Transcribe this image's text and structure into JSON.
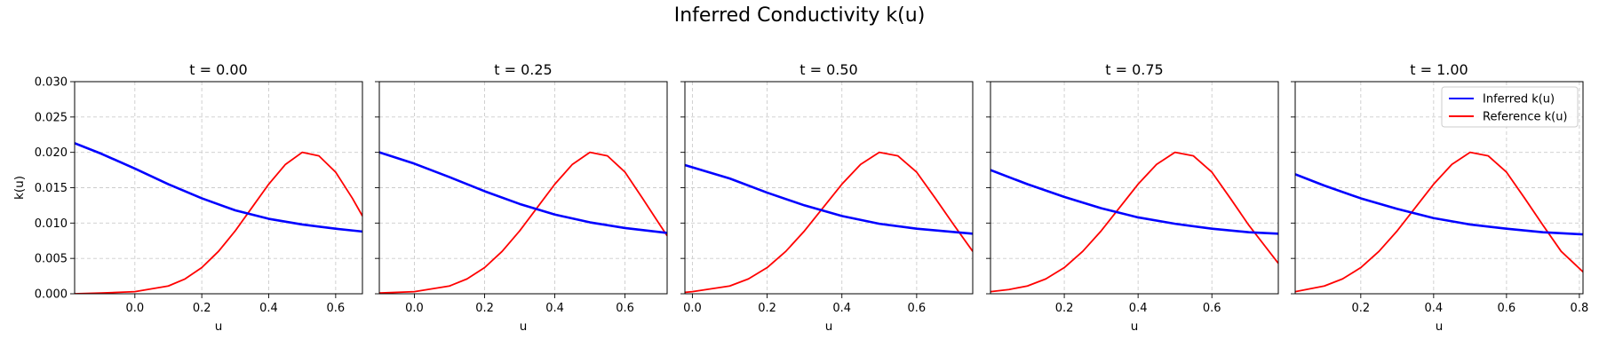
{
  "chart_data": {
    "type": "line",
    "title": "Inferred Conductivity k(u)",
    "ylabel": "k(u)",
    "xlabel": "u",
    "ylim": [
      0,
      0.03
    ],
    "yticks": [
      "0.000",
      "0.005",
      "0.010",
      "0.015",
      "0.020",
      "0.025",
      "0.030"
    ],
    "grid": true,
    "legend_placement": "upper-right",
    "series_names": [
      "Inferred k(u)",
      "Reference k(u)"
    ],
    "colors": {
      "inferred": "#0000ff",
      "reference": "#ff0000"
    },
    "panels": [
      {
        "title": "t = 0.00",
        "xlim": [
          -0.18,
          0.68
        ],
        "xticks": [
          "0.0",
          "0.2",
          "0.4",
          "0.6"
        ],
        "inferred": {
          "x": [
            -0.18,
            -0.1,
            0.0,
            0.1,
            0.2,
            0.3,
            0.4,
            0.5,
            0.6,
            0.68
          ],
          "y": [
            0.0213,
            0.0198,
            0.0177,
            0.0155,
            0.0135,
            0.0118,
            0.0106,
            0.0098,
            0.0092,
            0.0088
          ]
        },
        "reference": {
          "x": [
            -0.18,
            -0.1,
            0.0,
            0.1,
            0.15,
            0.2,
            0.25,
            0.3,
            0.35,
            0.4,
            0.45,
            0.5,
            0.55,
            0.6,
            0.65,
            0.68
          ],
          "y": [
            0.0,
            0.0001,
            0.0003,
            0.0011,
            0.0021,
            0.0037,
            0.006,
            0.0089,
            0.0122,
            0.0155,
            0.0183,
            0.02,
            0.0195,
            0.0172,
            0.0135,
            0.011
          ]
        }
      },
      {
        "title": "t = 0.25",
        "xlim": [
          -0.1,
          0.72
        ],
        "xticks": [
          "0.0",
          "0.2",
          "0.4",
          "0.6"
        ],
        "inferred": {
          "x": [
            -0.1,
            0.0,
            0.1,
            0.2,
            0.3,
            0.4,
            0.5,
            0.6,
            0.72
          ],
          "y": [
            0.02,
            0.0184,
            0.0165,
            0.0145,
            0.0127,
            0.0112,
            0.0101,
            0.0093,
            0.0086
          ]
        },
        "reference": {
          "x": [
            -0.1,
            0.0,
            0.1,
            0.15,
            0.2,
            0.25,
            0.3,
            0.35,
            0.4,
            0.45,
            0.5,
            0.55,
            0.6,
            0.65,
            0.7,
            0.72
          ],
          "y": [
            0.0001,
            0.0003,
            0.0011,
            0.0021,
            0.0037,
            0.006,
            0.0089,
            0.0122,
            0.0155,
            0.0183,
            0.02,
            0.0195,
            0.0172,
            0.0135,
            0.0097,
            0.0082
          ]
        }
      },
      {
        "title": "t = 0.50",
        "xlim": [
          -0.02,
          0.75
        ],
        "xticks": [
          "0.0",
          "0.2",
          "0.4",
          "0.6"
        ],
        "inferred": {
          "x": [
            -0.02,
            0.1,
            0.2,
            0.3,
            0.4,
            0.5,
            0.6,
            0.75
          ],
          "y": [
            0.0182,
            0.0163,
            0.0143,
            0.0125,
            0.011,
            0.0099,
            0.0092,
            0.0085
          ]
        },
        "reference": {
          "x": [
            -0.02,
            0.0,
            0.1,
            0.15,
            0.2,
            0.25,
            0.3,
            0.35,
            0.4,
            0.45,
            0.5,
            0.55,
            0.6,
            0.65,
            0.7,
            0.75
          ],
          "y": [
            0.0002,
            0.0003,
            0.0011,
            0.0021,
            0.0037,
            0.006,
            0.0089,
            0.0122,
            0.0155,
            0.0183,
            0.02,
            0.0195,
            0.0172,
            0.0135,
            0.0097,
            0.006
          ]
        }
      },
      {
        "title": "t = 0.75",
        "xlim": [
          0.0,
          0.78
        ],
        "xticks": [
          "0.2",
          "0.4",
          "0.6"
        ],
        "inferred": {
          "x": [
            0.0,
            0.1,
            0.2,
            0.3,
            0.4,
            0.5,
            0.6,
            0.7,
            0.78
          ],
          "y": [
            0.0175,
            0.0155,
            0.0137,
            0.0121,
            0.0108,
            0.0099,
            0.0092,
            0.0087,
            0.0085
          ]
        },
        "reference": {
          "x": [
            0.0,
            0.05,
            0.1,
            0.15,
            0.2,
            0.25,
            0.3,
            0.35,
            0.4,
            0.45,
            0.5,
            0.55,
            0.6,
            0.65,
            0.7,
            0.78
          ],
          "y": [
            0.0003,
            0.0006,
            0.0011,
            0.0021,
            0.0037,
            0.006,
            0.0089,
            0.0122,
            0.0155,
            0.0183,
            0.02,
            0.0195,
            0.0172,
            0.0135,
            0.0097,
            0.0043
          ]
        }
      },
      {
        "title": "t = 1.00",
        "xlim": [
          0.02,
          0.81
        ],
        "xticks": [
          "0.2",
          "0.4",
          "0.6",
          "0.8"
        ],
        "inferred": {
          "x": [
            0.02,
            0.1,
            0.2,
            0.3,
            0.4,
            0.5,
            0.6,
            0.7,
            0.81
          ],
          "y": [
            0.0169,
            0.0153,
            0.0135,
            0.012,
            0.0107,
            0.0098,
            0.0092,
            0.0087,
            0.0084
          ]
        },
        "reference": {
          "x": [
            0.02,
            0.05,
            0.1,
            0.15,
            0.2,
            0.25,
            0.3,
            0.35,
            0.4,
            0.45,
            0.5,
            0.55,
            0.6,
            0.65,
            0.7,
            0.75,
            0.81
          ],
          "y": [
            0.0003,
            0.0006,
            0.0011,
            0.0021,
            0.0037,
            0.006,
            0.0089,
            0.0122,
            0.0155,
            0.0183,
            0.02,
            0.0195,
            0.0172,
            0.0135,
            0.0097,
            0.006,
            0.0031
          ]
        }
      }
    ]
  }
}
